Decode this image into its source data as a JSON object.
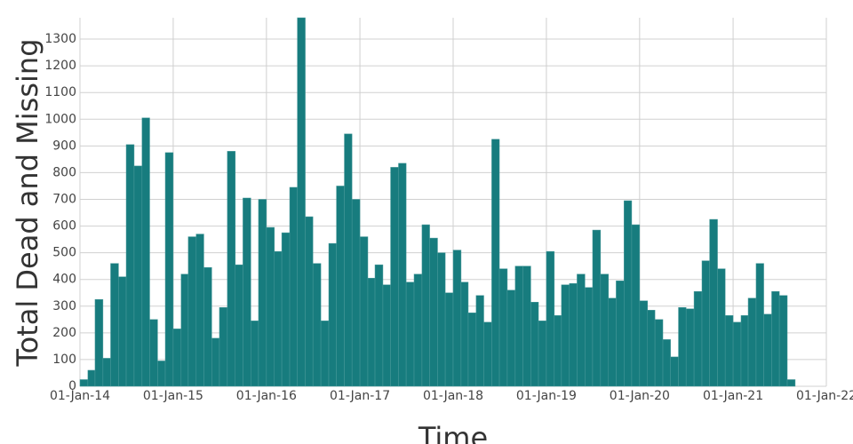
{
  "chart_data": {
    "type": "histogram",
    "xlabel": "Time",
    "ylabel": "Total Dead and Missing",
    "color": "#177c7e",
    "grid": true,
    "bins": [
      "2014-01-01",
      "2014-02-01",
      "2014-03-01",
      "2014-04-01",
      "2014-05-01",
      "2014-06-01",
      "2014-07-01",
      "2014-08-01",
      "2014-09-01",
      "2014-10-01",
      "2014-11-01",
      "2014-12-01",
      "2015-01-01",
      "2015-02-01",
      "2015-03-01",
      "2015-04-01",
      "2015-05-01",
      "2015-06-01",
      "2015-07-01",
      "2015-08-01",
      "2015-09-01",
      "2015-10-01",
      "2015-11-01",
      "2015-12-01",
      "2016-01-01",
      "2016-02-01",
      "2016-03-01",
      "2016-04-01",
      "2016-05-01",
      "2016-06-01",
      "2016-07-01",
      "2016-08-01",
      "2016-09-01",
      "2016-10-01",
      "2016-11-01",
      "2016-12-01",
      "2017-01-01",
      "2017-02-01",
      "2017-03-01",
      "2017-04-01",
      "2017-05-01",
      "2017-06-01",
      "2017-07-01",
      "2017-08-01",
      "2017-09-01",
      "2017-10-01",
      "2017-11-01",
      "2017-12-01",
      "2018-01-01",
      "2018-02-01",
      "2018-03-01",
      "2018-04-01",
      "2018-05-01",
      "2018-06-01",
      "2018-07-01",
      "2018-08-01",
      "2018-09-01",
      "2018-10-01",
      "2018-11-01",
      "2018-12-01",
      "2019-01-01",
      "2019-02-01",
      "2019-03-01",
      "2019-04-01",
      "2019-05-01",
      "2019-06-01",
      "2019-07-01",
      "2019-08-01",
      "2019-09-01",
      "2019-10-01",
      "2019-11-01",
      "2019-12-01",
      "2020-01-01",
      "2020-02-01",
      "2020-03-01",
      "2020-04-01",
      "2020-05-01",
      "2020-06-01",
      "2020-07-01",
      "2020-08-01",
      "2020-09-01",
      "2020-10-01",
      "2020-11-01",
      "2020-12-01",
      "2021-01-01",
      "2021-02-01",
      "2021-03-01",
      "2021-04-01",
      "2021-05-01",
      "2021-06-01",
      "2021-07-01",
      "2021-08-01",
      "2021-09-01"
    ],
    "values": [
      25,
      60,
      325,
      105,
      460,
      410,
      905,
      825,
      1005,
      250,
      95,
      875,
      215,
      420,
      560,
      570,
      445,
      180,
      295,
      880,
      455,
      705,
      245,
      700,
      595,
      505,
      575,
      745,
      1380,
      635,
      460,
      245,
      535,
      750,
      945,
      700,
      560,
      405,
      455,
      380,
      820,
      835,
      390,
      420,
      605,
      555,
      500,
      350,
      510,
      390,
      275,
      340,
      240,
      925,
      440,
      360,
      450,
      450,
      315,
      245,
      505,
      265,
      380,
      385,
      420,
      370,
      585,
      420,
      330,
      395,
      695,
      605,
      320,
      285,
      250,
      175,
      110,
      295,
      290,
      355,
      470,
      625,
      440,
      265,
      240,
      265,
      330,
      460,
      270,
      355,
      340,
      25
    ],
    "xlim": [
      "2014-01-01",
      "2022-01-01"
    ],
    "xticks": [
      {
        "value": "2014-01-01",
        "label": "01-Jan-14"
      },
      {
        "value": "2015-01-01",
        "label": "01-Jan-15"
      },
      {
        "value": "2016-01-01",
        "label": "01-Jan-16"
      },
      {
        "value": "2017-01-01",
        "label": "01-Jan-17"
      },
      {
        "value": "2018-01-01",
        "label": "01-Jan-18"
      },
      {
        "value": "2019-01-01",
        "label": "01-Jan-19"
      },
      {
        "value": "2020-01-01",
        "label": "01-Jan-20"
      },
      {
        "value": "2021-01-01",
        "label": "01-Jan-21"
      },
      {
        "value": "2022-01-01",
        "label": "01-Jan-22"
      }
    ],
    "ylim": [
      0,
      1380
    ],
    "yticks": [
      0,
      100,
      200,
      300,
      400,
      500,
      600,
      700,
      800,
      900,
      1000,
      1100,
      1200,
      1300
    ]
  }
}
